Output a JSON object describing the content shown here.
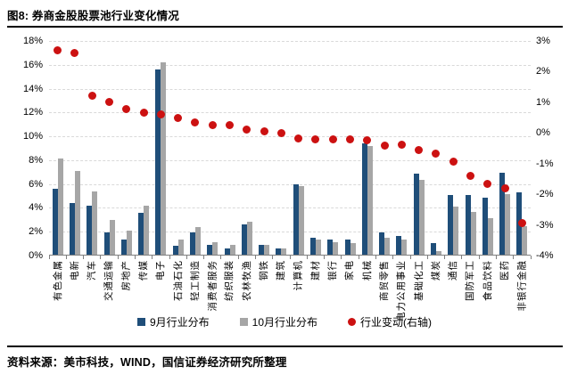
{
  "title": "图8: 券商金股股票池行业变化情况",
  "source": "资料来源：美市科技，WIND，国信证券经济研究所整理",
  "colors": {
    "september_bar": "#1F4E79",
    "october_bar": "#A6A6A6",
    "change_dot": "#CC1111",
    "gridline": "#D9D9D9",
    "axis_line": "#808080",
    "text": "#000000"
  },
  "chart_data": {
    "type": "bar",
    "title": "券商金股股票池行业变化情况",
    "grid": "dashed horizontal",
    "legend_position": "bottom",
    "categories": [
      "有色金属",
      "电新",
      "汽车",
      "交通运输",
      "房地产",
      "传媒",
      "电子",
      "石油石化",
      "轻工制造",
      "消费者服务",
      "纺织服装",
      "农林牧渔",
      "钢铁",
      "建筑",
      "计算机",
      "建材",
      "银行",
      "家电",
      "机械",
      "商贸零售",
      "电力公用事业",
      "基础化工",
      "煤炭",
      "通信",
      "国防军工",
      "食品饮料",
      "医药",
      "非银行金融"
    ],
    "series": [
      {
        "name": "9月行业分布",
        "type": "bar",
        "axis": "left",
        "unit": "%",
        "values": [
          5.5,
          4.3,
          4.1,
          1.9,
          1.25,
          3.5,
          15.5,
          0.75,
          1.9,
          0.8,
          0.55,
          2.55,
          0.8,
          0.55,
          5.9,
          1.45,
          1.25,
          1.25,
          9.3,
          1.85,
          1.6,
          6.8,
          0.95,
          5.0,
          5.0,
          4.8,
          6.85,
          5.25
        ]
      },
      {
        "name": "10月行业分布",
        "type": "bar",
        "axis": "left",
        "unit": "%",
        "values": [
          8.1,
          7.0,
          5.3,
          2.9,
          2.0,
          4.1,
          16.1,
          1.3,
          2.3,
          1.05,
          0.8,
          2.75,
          0.85,
          0.5,
          5.75,
          1.3,
          1.05,
          1.0,
          9.1,
          1.45,
          1.3,
          6.25,
          0.3,
          4.05,
          3.6,
          3.1,
          5.05,
          2.4
        ]
      },
      {
        "name": "行业变动(右轴)",
        "type": "scatter",
        "axis": "right",
        "unit": "%",
        "values": [
          2.7,
          2.6,
          1.2,
          1.0,
          0.78,
          0.65,
          0.6,
          0.5,
          0.35,
          0.25,
          0.25,
          0.12,
          0.05,
          0.0,
          -0.18,
          -0.2,
          -0.2,
          -0.22,
          -0.25,
          -0.4,
          -0.38,
          -0.57,
          -0.68,
          -0.95,
          -1.4,
          -1.67,
          -1.8,
          -2.95
        ]
      }
    ],
    "left_axis": {
      "min": 0,
      "max": 18,
      "step": 2,
      "ticks": [
        "0%",
        "2%",
        "4%",
        "6%",
        "8%",
        "10%",
        "12%",
        "14%",
        "16%",
        "18%"
      ]
    },
    "right_axis": {
      "min": -4,
      "max": 3,
      "step": 1,
      "ticks": [
        "3%",
        "2%",
        "1%",
        "0%",
        "-1%",
        "-2%",
        "-3%",
        "-4%"
      ]
    }
  }
}
